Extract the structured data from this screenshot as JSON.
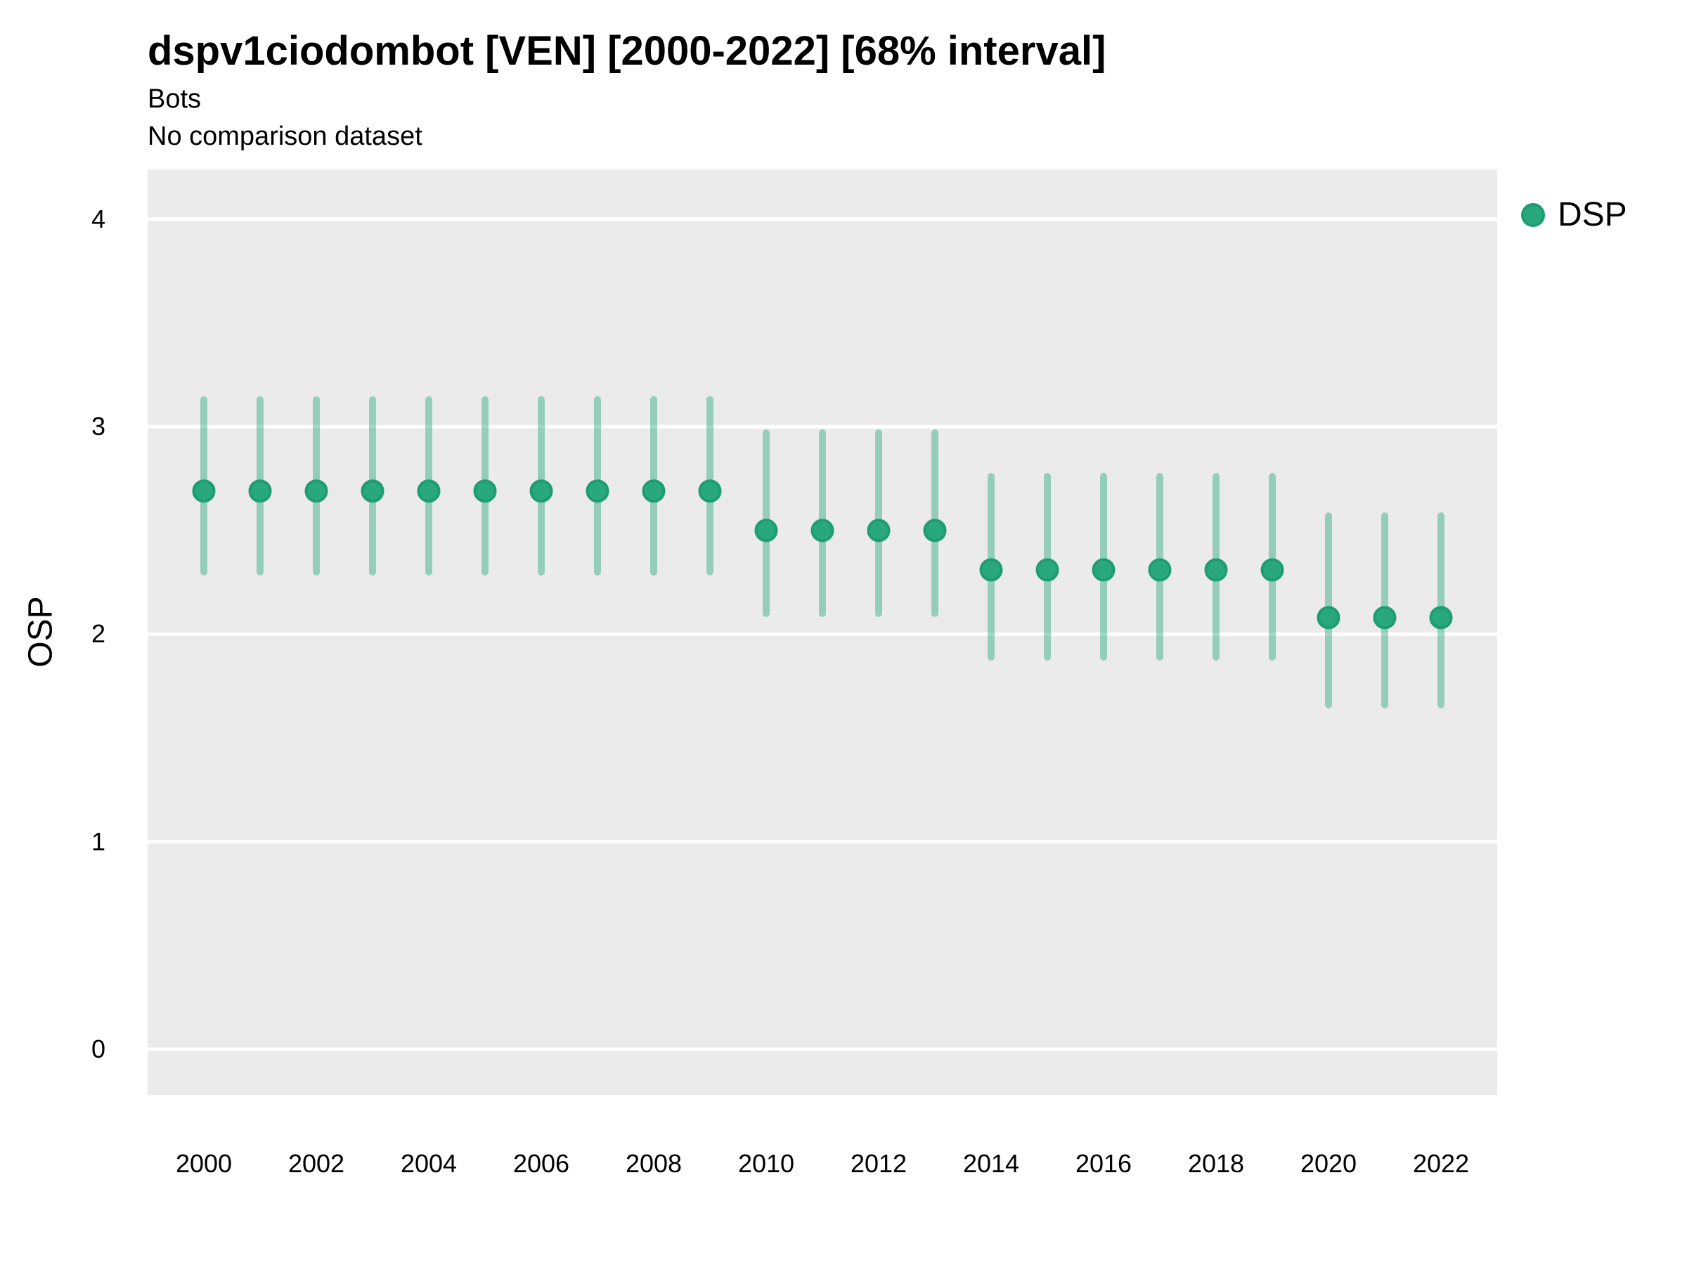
{
  "header": {
    "title": "dspv1ciodombot [VEN] [2000-2022] [68% interval]",
    "subtitle": "Bots",
    "note": "No comparison dataset"
  },
  "legend": {
    "items": [
      {
        "label": "DSP",
        "color": "#2aa87d"
      }
    ]
  },
  "colors": {
    "point_fill": "#2aa87d",
    "point_stroke": "#1e9c72",
    "interval_bar": "rgba(42,168,125,0.45)",
    "panel_bg": "#ebebeb",
    "gridline": "#ffffff",
    "text": "#000000"
  },
  "chart_data": {
    "type": "scatter",
    "title": "dspv1ciodombot [VEN] [2000-2022] [68% interval]",
    "subtitle": "Bots",
    "note": "No comparison dataset",
    "xlabel": "",
    "ylabel": "OSP",
    "interval": "68%",
    "legend_position": "right",
    "grid": "horizontal-major-only",
    "x": [
      2000,
      2001,
      2002,
      2003,
      2004,
      2005,
      2006,
      2007,
      2008,
      2009,
      2010,
      2011,
      2012,
      2013,
      2014,
      2015,
      2016,
      2017,
      2018,
      2019,
      2020,
      2021,
      2022
    ],
    "series": [
      {
        "name": "DSP",
        "mid": [
          2.69,
          2.69,
          2.69,
          2.69,
          2.69,
          2.69,
          2.69,
          2.69,
          2.69,
          2.69,
          2.5,
          2.5,
          2.5,
          2.5,
          2.31,
          2.31,
          2.31,
          2.31,
          2.31,
          2.31,
          2.08,
          2.08,
          2.08
        ],
        "lo": [
          2.3,
          2.3,
          2.3,
          2.3,
          2.3,
          2.3,
          2.3,
          2.3,
          2.3,
          2.3,
          2.1,
          2.1,
          2.1,
          2.1,
          1.89,
          1.89,
          1.89,
          1.89,
          1.89,
          1.89,
          1.66,
          1.66,
          1.66
        ],
        "hi": [
          3.13,
          3.13,
          3.13,
          3.13,
          3.13,
          3.13,
          3.13,
          3.13,
          3.13,
          3.13,
          2.97,
          2.97,
          2.97,
          2.97,
          2.76,
          2.76,
          2.76,
          2.76,
          2.76,
          2.76,
          2.57,
          2.57,
          2.57
        ]
      }
    ],
    "xticks": [
      2000,
      2002,
      2004,
      2006,
      2008,
      2010,
      2012,
      2014,
      2016,
      2018,
      2020,
      2022
    ],
    "yticks": [
      0,
      1,
      2,
      3,
      4
    ],
    "xlim": [
      1999,
      2023
    ],
    "ylim": [
      -0.22,
      4.24
    ]
  }
}
